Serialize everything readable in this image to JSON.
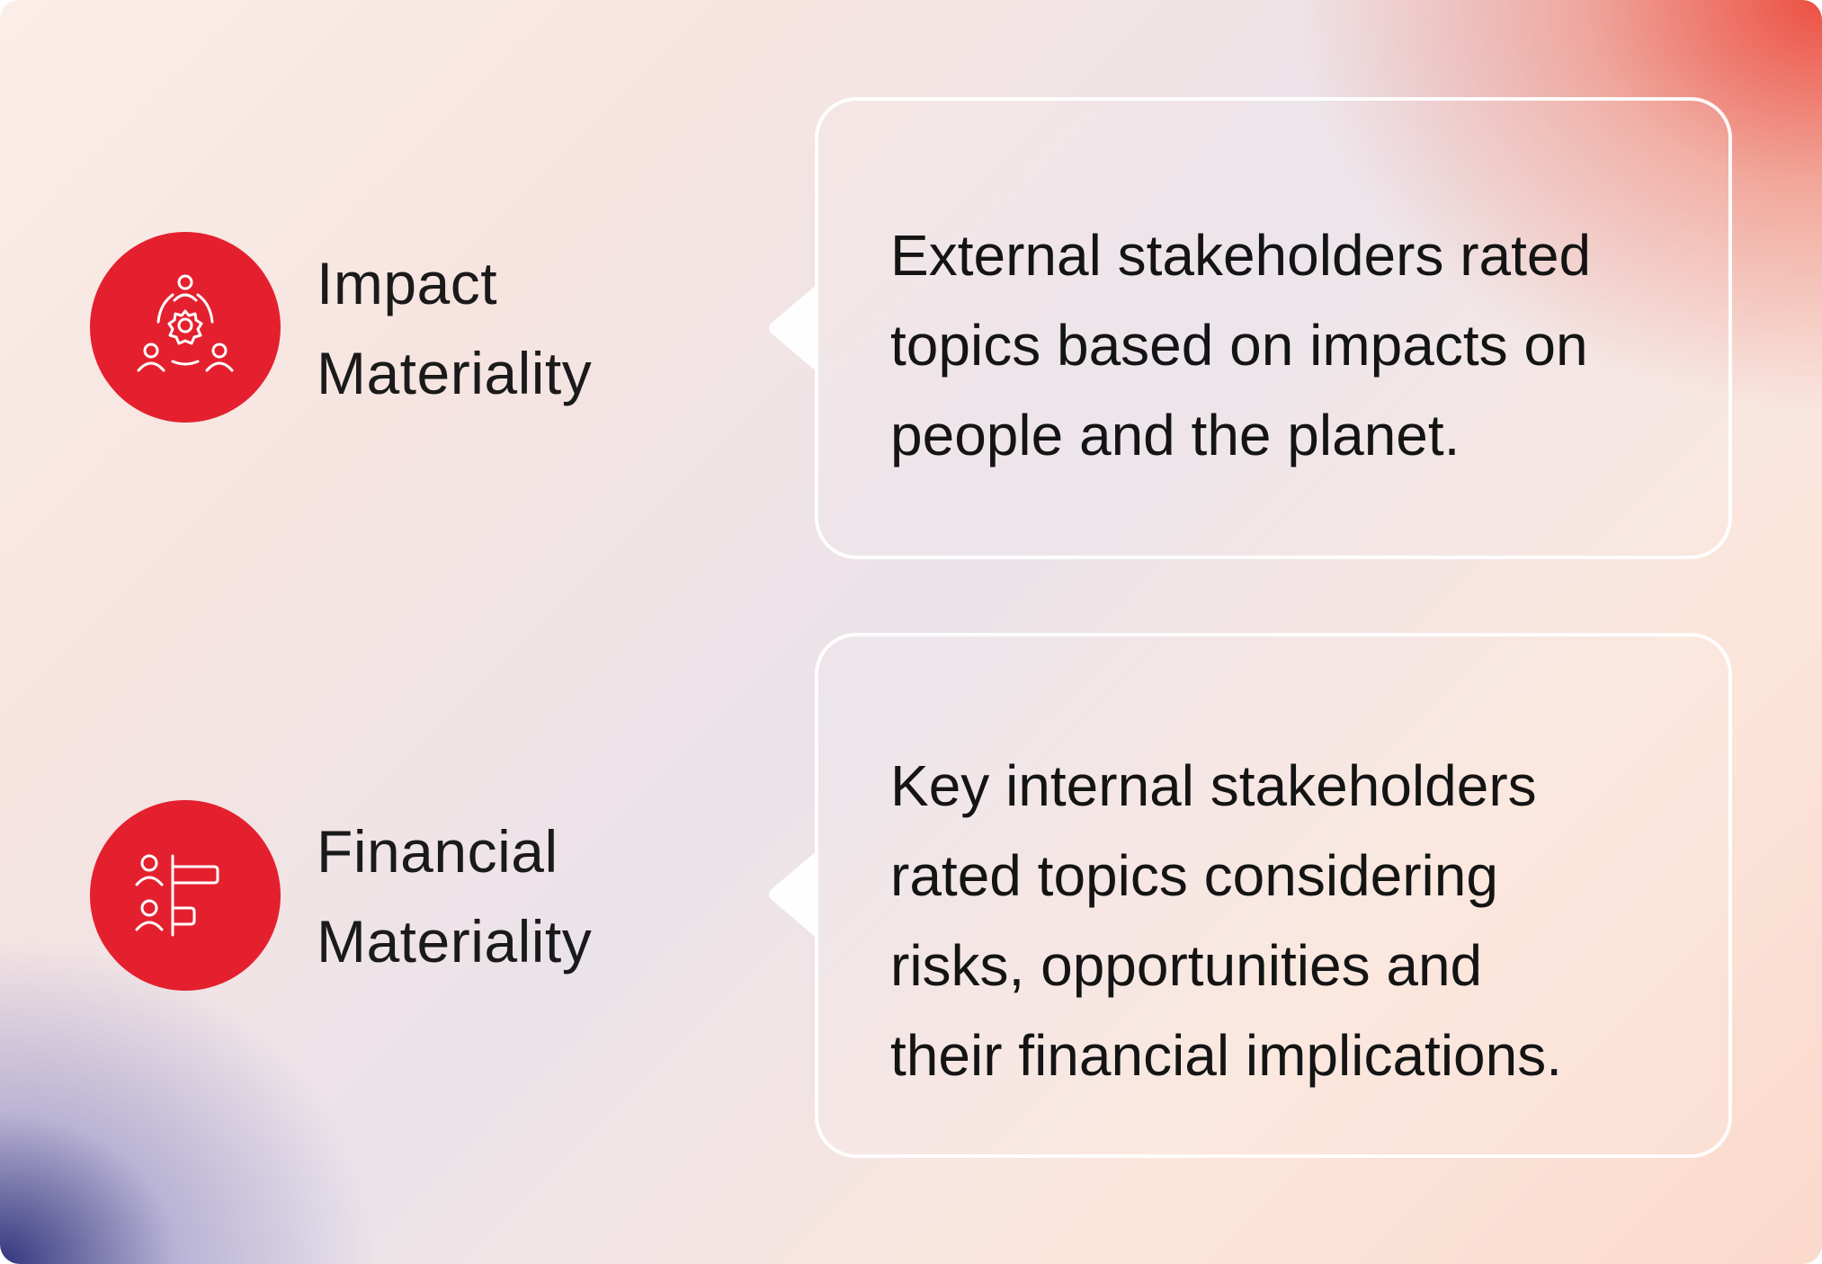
{
  "items": [
    {
      "id": "impact",
      "title_lines": [
        "Impact",
        "Materiality"
      ],
      "icon": "stakeholders-gear-icon",
      "description_lines": [
        "External stakeholders rated",
        "topics based on impacts on",
        "people and the planet."
      ]
    },
    {
      "id": "financial",
      "title_lines": [
        "Financial",
        "Materiality"
      ],
      "icon": "people-bar-chart-icon",
      "description_lines": [
        "Key internal stakeholders",
        "rated topics considering",
        "risks, opportunities and",
        "their financial implications."
      ]
    }
  ],
  "colors": {
    "accent": "#e4202f",
    "text": "#141414",
    "card_border": "#ffffff"
  }
}
